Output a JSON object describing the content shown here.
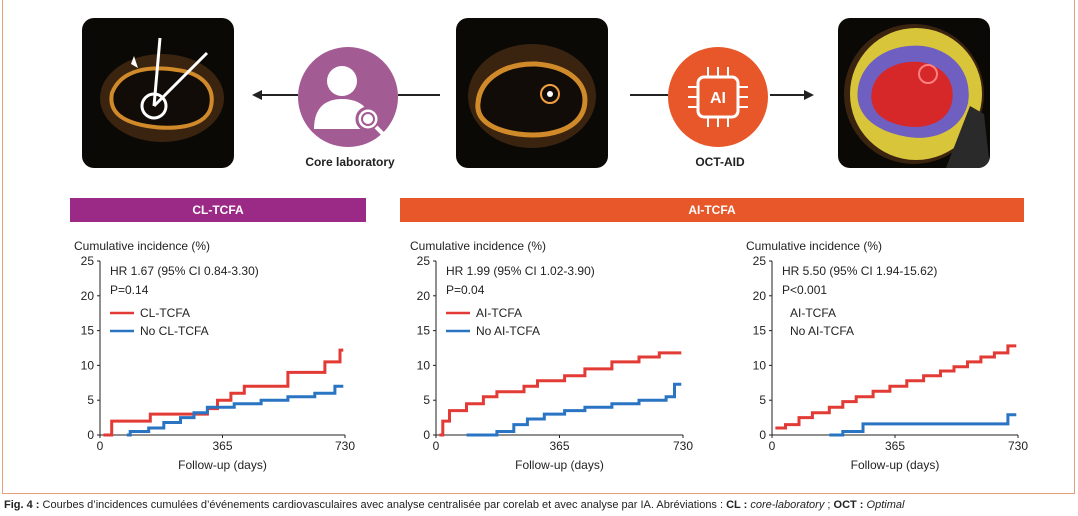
{
  "top": {
    "core_label": "Core laboratory",
    "octaid_label": "OCT-AID",
    "ai_chip_text": "AI"
  },
  "bars": {
    "left": {
      "label": "CL-TCFA",
      "color": "#9b2a86"
    },
    "right": {
      "label": "AI-TCFA",
      "color": "#e8572a"
    }
  },
  "colors": {
    "red": "#e23a34",
    "blue": "#2a74c4",
    "axis": "#222222"
  },
  "caption": {
    "prefix": "Fig. 4 :",
    "text": " Courbes d’incidences cumulées d’événements cardiovasculaires avec analyse centralisée par corelab et avec analyse par IA. Abréviations : ",
    "abbr1": "CL :",
    "abbr1_def": " core-laboratory",
    "sep": " ; ",
    "abbr2": "OCT :",
    "abbr2_def": " Optimal"
  },
  "chart_data": [
    {
      "type": "line",
      "ylabel": "Cumulative incidence (%)",
      "xlabel": "Follow-up (days)",
      "ylim": [
        0,
        25
      ],
      "xlim": [
        0,
        730
      ],
      "yticks": [
        "0",
        "5",
        "10",
        "15",
        "20",
        "25"
      ],
      "xticks": [
        "0",
        "365",
        "730"
      ],
      "hr": "HR 1.67 (95% CI 0.84-3.30)",
      "p": "P=0.14",
      "legend": [
        "CL-TCFA",
        "No CL-TCFA"
      ],
      "show_legend_lines": true,
      "series": [
        {
          "name": "CL-TCFA",
          "color": "red",
          "x": [
            10,
            35,
            35,
            150,
            150,
            320,
            320,
            350,
            350,
            390,
            390,
            430,
            430,
            560,
            560,
            670,
            670,
            715,
            715,
            725
          ],
          "y": [
            0,
            0,
            2,
            2,
            3,
            3,
            3.8,
            3.8,
            5,
            5,
            6,
            6,
            7,
            7,
            9,
            9,
            10.5,
            10.5,
            12.2,
            12.2
          ]
        },
        {
          "name": "No CL-TCFA",
          "color": "blue",
          "x": [
            80,
            90,
            90,
            145,
            145,
            190,
            190,
            240,
            240,
            280,
            280,
            320,
            320,
            400,
            400,
            480,
            480,
            560,
            560,
            640,
            640,
            700,
            700,
            725
          ],
          "y": [
            0,
            0,
            0.5,
            0.5,
            1,
            1,
            1.8,
            1.8,
            2.5,
            2.5,
            3.2,
            3.2,
            4,
            4,
            4.5,
            4.5,
            5,
            5,
            5.5,
            5.5,
            6,
            6,
            7,
            7
          ]
        }
      ]
    },
    {
      "type": "line",
      "ylabel": "Cumulative incidence (%)",
      "xlabel": "Follow-up (days)",
      "ylim": [
        0,
        25
      ],
      "xlim": [
        0,
        730
      ],
      "yticks": [
        "0",
        "5",
        "10",
        "15",
        "20",
        "25"
      ],
      "xticks": [
        "0",
        "365",
        "730"
      ],
      "hr": "HR 1.99 (95% CI 1.02-3.90)",
      "p": "P=0.04",
      "legend": [
        "AI-TCFA",
        "No AI-TCFA"
      ],
      "show_legend_lines": true,
      "series": [
        {
          "name": "AI-TCFA",
          "color": "red",
          "x": [
            10,
            20,
            20,
            40,
            40,
            90,
            90,
            140,
            140,
            180,
            180,
            260,
            260,
            300,
            300,
            380,
            380,
            440,
            440,
            520,
            520,
            600,
            600,
            660,
            660,
            725
          ],
          "y": [
            0,
            0,
            2,
            2,
            3.5,
            3.5,
            4.5,
            4.5,
            5.5,
            5.5,
            6.2,
            6.2,
            7,
            7,
            7.8,
            7.8,
            8.5,
            8.5,
            9.5,
            9.5,
            10.5,
            10.5,
            11.2,
            11.2,
            11.8,
            11.8
          ]
        },
        {
          "name": "No AI-TCFA",
          "color": "blue",
          "x": [
            90,
            180,
            180,
            230,
            230,
            270,
            270,
            320,
            320,
            380,
            380,
            440,
            440,
            520,
            520,
            600,
            600,
            680,
            680,
            705,
            705,
            725
          ],
          "y": [
            0,
            0,
            0.5,
            0.5,
            1.5,
            1.5,
            2.3,
            2.3,
            3,
            3,
            3.5,
            3.5,
            4,
            4,
            4.5,
            4.5,
            5,
            5,
            5.5,
            5.5,
            7.3,
            7.3
          ]
        }
      ]
    },
    {
      "type": "line",
      "ylabel": "Cumulative incidence (%)",
      "xlabel": "Follow-up (days)",
      "ylim": [
        0,
        25
      ],
      "xlim": [
        0,
        730
      ],
      "yticks": [
        "0",
        "5",
        "10",
        "15",
        "20",
        "25"
      ],
      "xticks": [
        "0",
        "365",
        "730"
      ],
      "hr": "HR 5.50 (95% CI 1.94-15.62)",
      "p": "P<0.001",
      "legend": [
        "AI-TCFA",
        "No AI-TCFA"
      ],
      "show_legend_lines": false,
      "series": [
        {
          "name": "AI-TCFA",
          "color": "red",
          "x": [
            10,
            40,
            40,
            80,
            80,
            120,
            120,
            170,
            170,
            210,
            210,
            250,
            250,
            300,
            300,
            350,
            350,
            400,
            400,
            450,
            450,
            500,
            500,
            540,
            540,
            580,
            580,
            620,
            620,
            660,
            660,
            700,
            700,
            715,
            715,
            725
          ],
          "y": [
            1,
            1,
            1.5,
            1.5,
            2.5,
            2.5,
            3.2,
            3.2,
            4,
            4,
            4.8,
            4.8,
            5.5,
            5.5,
            6.3,
            6.3,
            7,
            7,
            7.8,
            7.8,
            8.5,
            8.5,
            9.2,
            9.2,
            9.8,
            9.8,
            10.5,
            10.5,
            11.2,
            11.2,
            11.8,
            11.8,
            12.8,
            12.8,
            12.8,
            12.8
          ]
        },
        {
          "name": "No AI-TCFA",
          "color": "blue",
          "x": [
            170,
            210,
            210,
            270,
            270,
            700,
            700,
            725
          ],
          "y": [
            0,
            0,
            0.5,
            0.5,
            1.6,
            1.6,
            2.9,
            2.9
          ]
        }
      ]
    }
  ]
}
